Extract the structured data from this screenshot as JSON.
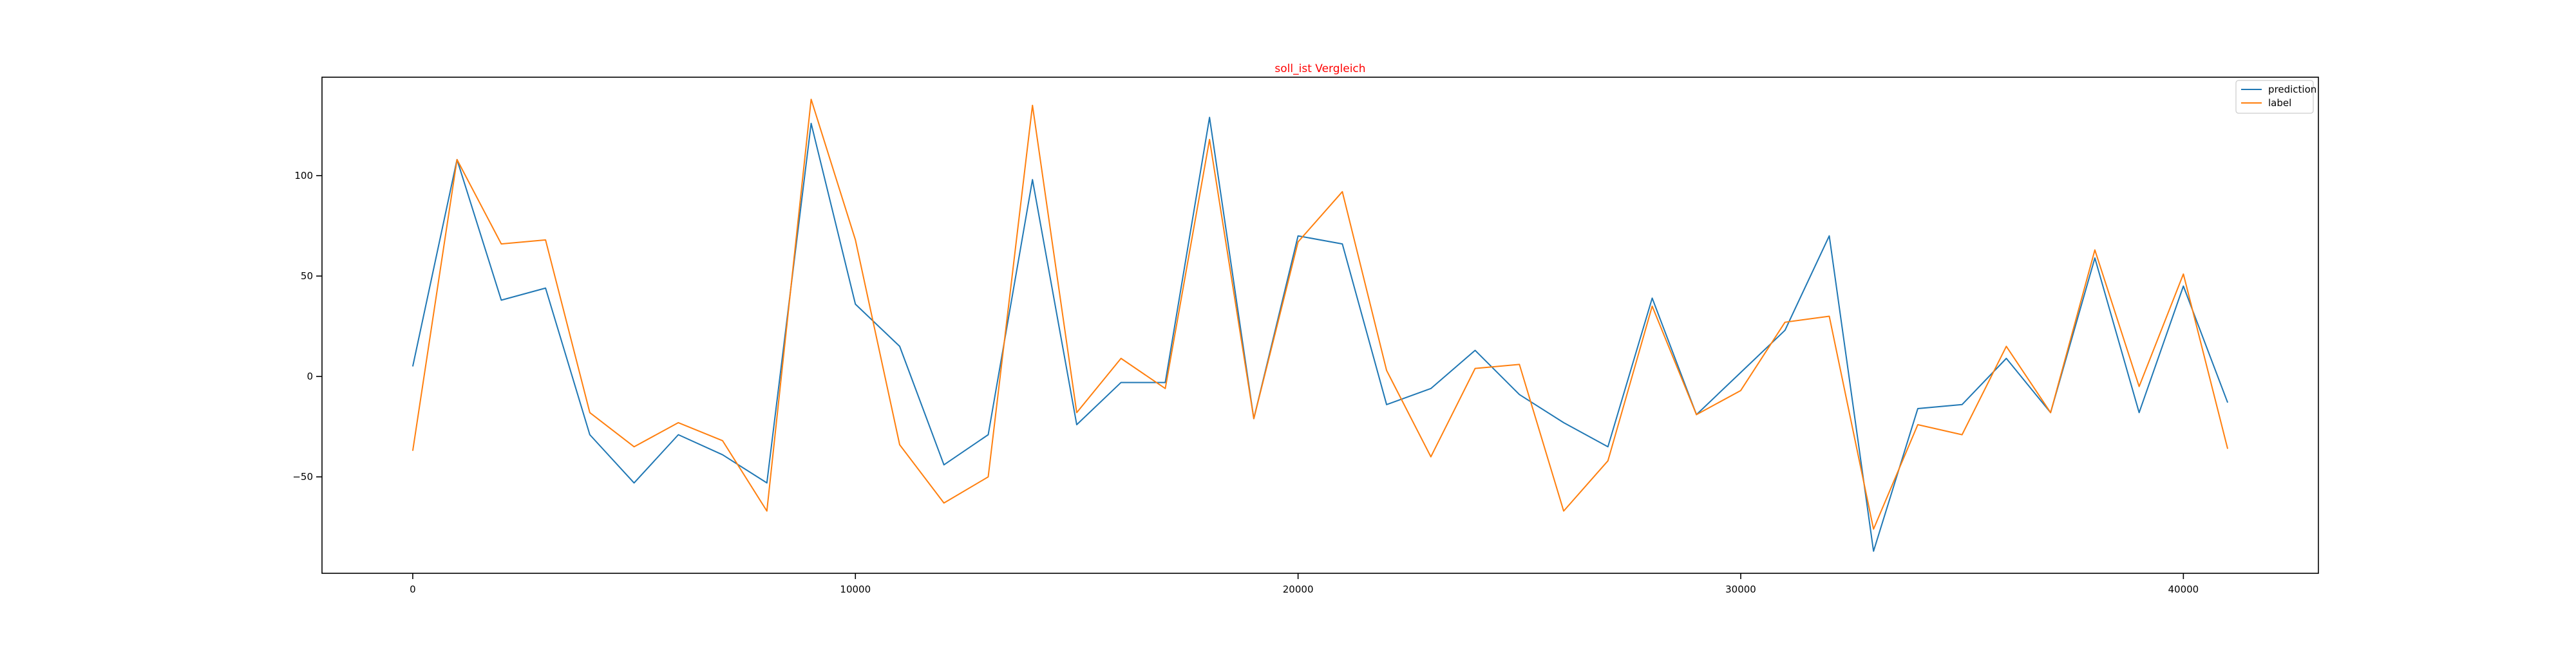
{
  "chart_data": {
    "type": "line",
    "title": "soll_ist Vergleich",
    "title_color": "#ff0000",
    "xlabel": "",
    "ylabel": "",
    "xlim": [
      -2050,
      43050
    ],
    "ylim": [
      -98,
      149
    ],
    "xticks": [
      0,
      10000,
      20000,
      30000,
      40000
    ],
    "yticks": [
      -50,
      0,
      50,
      100
    ],
    "grid": false,
    "legend": "top-right",
    "x": [
      0,
      1000,
      2000,
      3000,
      4000,
      5000,
      6000,
      7000,
      8000,
      9000,
      10000,
      11000,
      12000,
      13000,
      14000,
      15000,
      16000,
      17000,
      18000,
      19000,
      20000,
      21000,
      22000,
      23000,
      24000,
      25000,
      26000,
      27000,
      28000,
      29000,
      30000,
      31000,
      32000,
      33000,
      34000,
      35000,
      36000,
      37000,
      38000,
      39000,
      40000,
      41000
    ],
    "series": [
      {
        "name": "prediction",
        "color": "#1f77b4",
        "values": [
          5,
          108,
          38,
          44,
          -29,
          -53,
          -29,
          -39,
          -53,
          126,
          36,
          15,
          -44,
          -29,
          98,
          -24,
          -3,
          -3,
          129,
          -21,
          70,
          66,
          -14,
          -6,
          13,
          -9,
          -23,
          -35,
          39,
          -19,
          2,
          23,
          70,
          -87,
          -16,
          -14,
          9,
          -18,
          59,
          -18,
          45,
          -13
        ]
      },
      {
        "name": "label",
        "color": "#ff7f0e",
        "values": [
          -37,
          108,
          66,
          68,
          -18,
          -35,
          -23,
          -32,
          -67,
          138,
          68,
          -34,
          -63,
          -50,
          135,
          -18,
          9,
          -6,
          118,
          -21,
          67,
          92,
          3,
          -40,
          4,
          6,
          -67,
          -42,
          35,
          -19,
          -7,
          27,
          30,
          -76,
          -24,
          -29,
          15,
          -18,
          63,
          -5,
          51,
          -36
        ]
      }
    ]
  }
}
